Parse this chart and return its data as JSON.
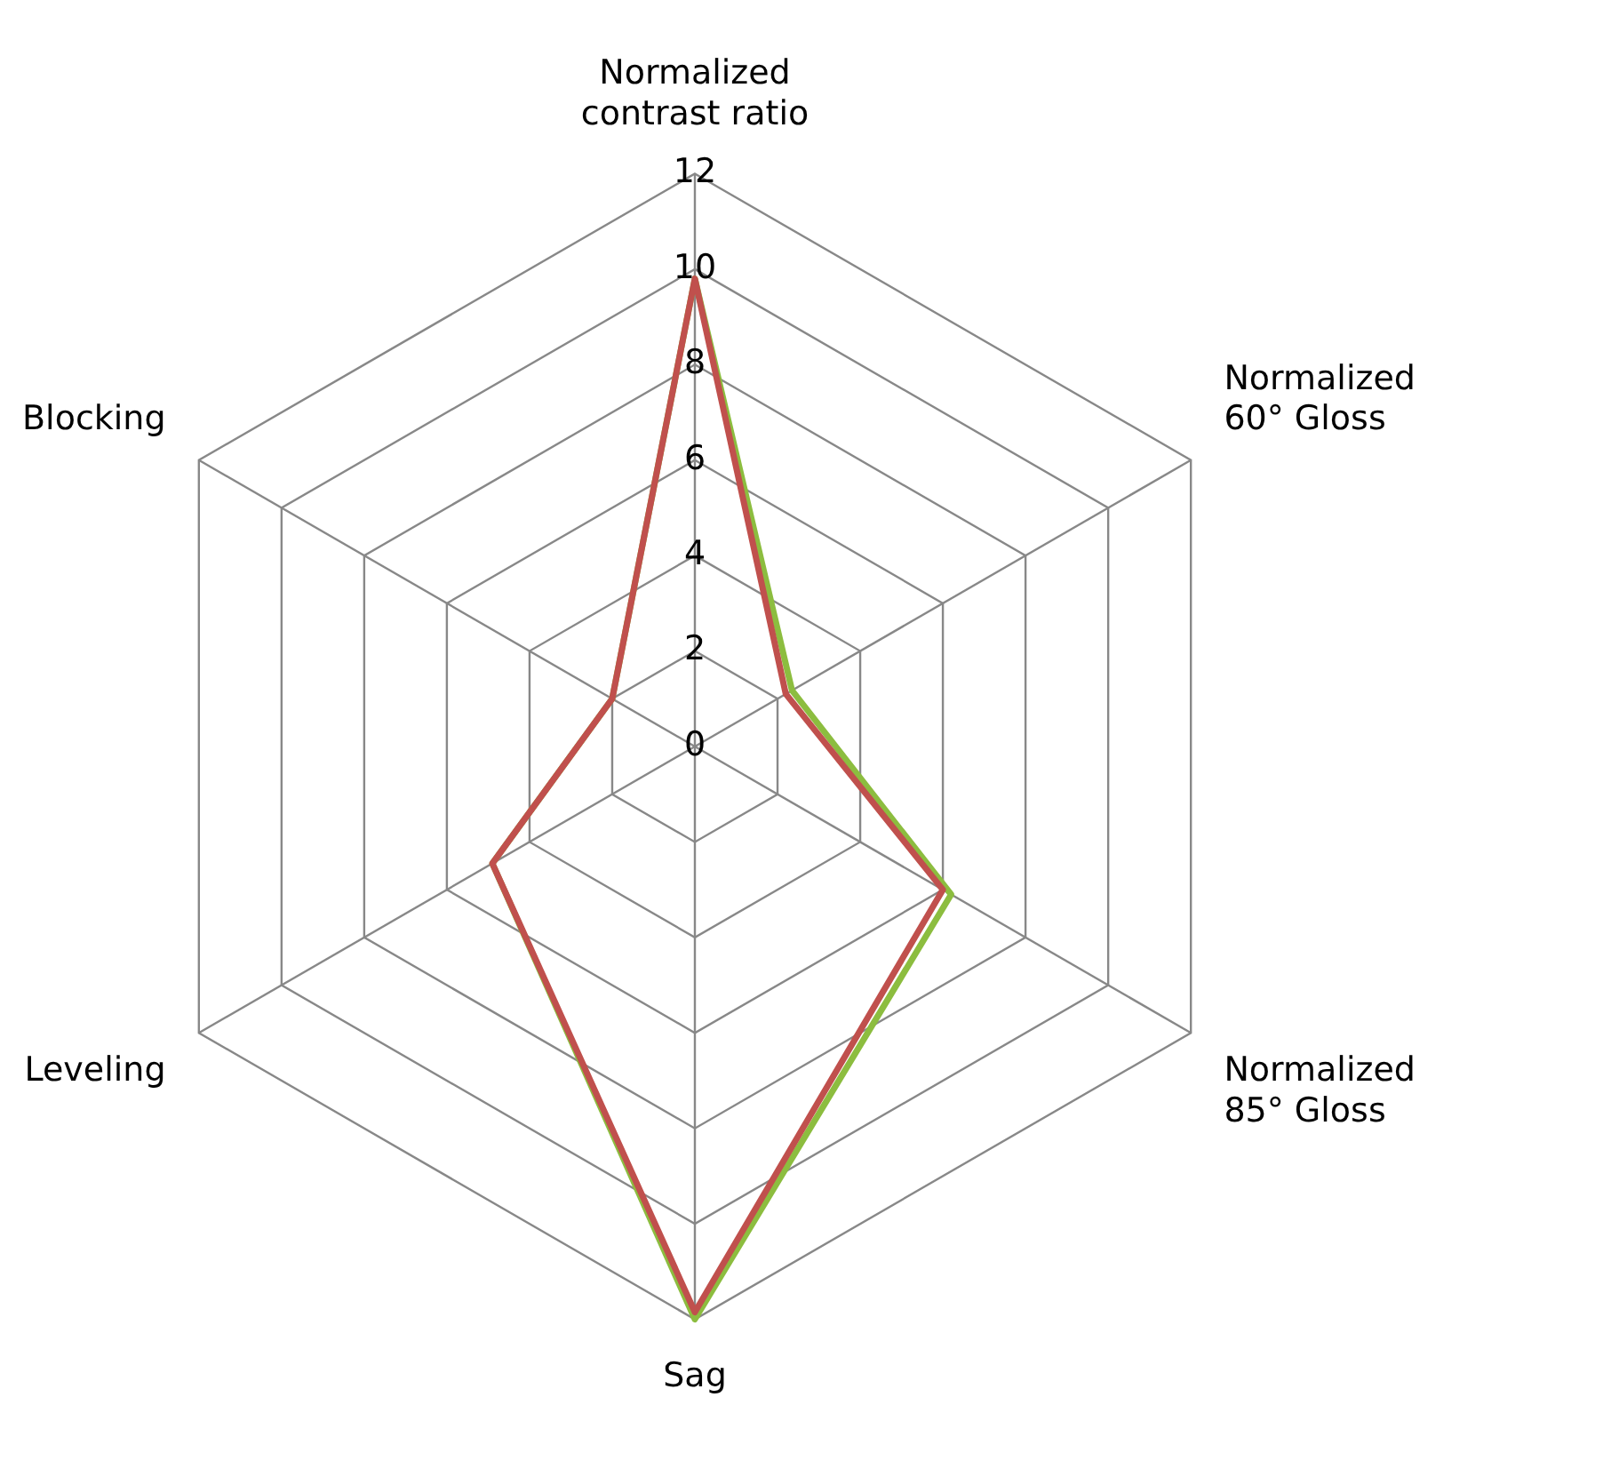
{
  "chart_data": {
    "type": "radar",
    "categories": [
      "Normalized contrast ratio",
      "Normalized 60° Gloss",
      "Normalized 85° Gloss",
      "Sag",
      "Leveling",
      "Blocking"
    ],
    "series": [
      {
        "color": "#8cbd3f",
        "values": [
          9.8,
          2.35,
          6.2,
          12,
          4.9,
          2
        ]
      },
      {
        "color": "#c0504d",
        "values": [
          9.8,
          2.2,
          6,
          11.85,
          4.9,
          2
        ]
      }
    ],
    "ylim": [
      0,
      12
    ],
    "yticks": [
      0,
      2,
      4,
      6,
      8,
      10,
      12
    ],
    "grid": true,
    "legend": false,
    "marker": "none",
    "line_style": "solid"
  }
}
